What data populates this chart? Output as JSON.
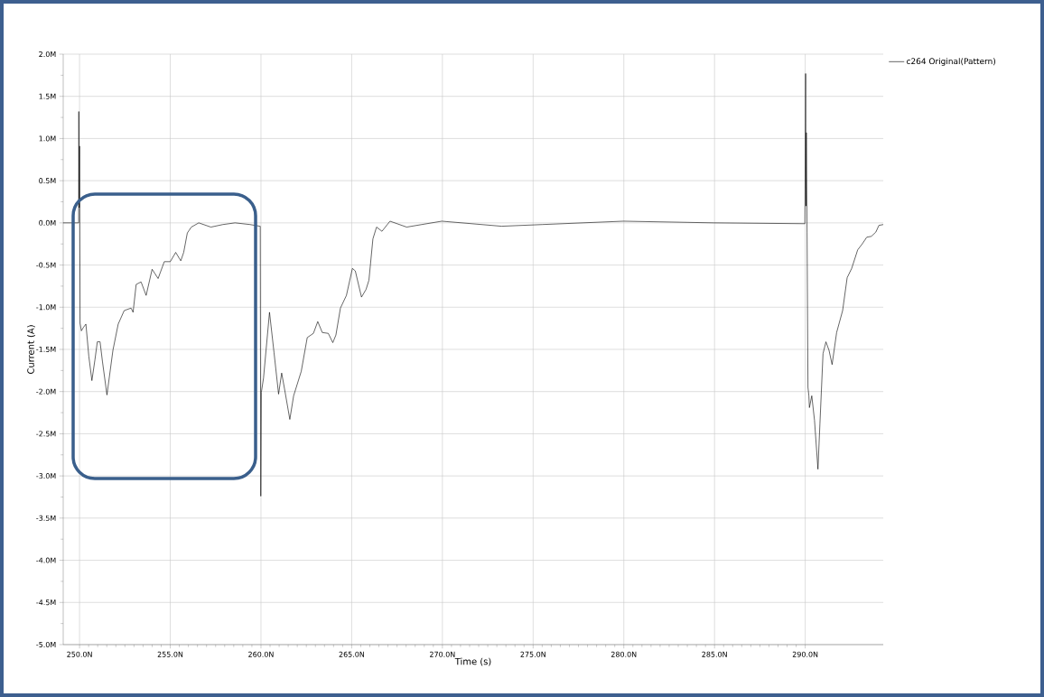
{
  "chart_data": {
    "type": "line",
    "xlabel": "Time (s)",
    "ylabel": "Current (A)",
    "xlim": [
      249.1,
      294.3
    ],
    "ylim": [
      -5.0,
      2.0
    ],
    "xticks": [
      {
        "value": 250,
        "label": "250.0N"
      },
      {
        "value": 255,
        "label": "255.0N"
      },
      {
        "value": 260,
        "label": "260.0N"
      },
      {
        "value": 265,
        "label": "265.0N"
      },
      {
        "value": 270,
        "label": "270.0N"
      },
      {
        "value": 275,
        "label": "275.0N"
      },
      {
        "value": 280,
        "label": "280.0N"
      },
      {
        "value": 285,
        "label": "285.0N"
      },
      {
        "value": 290,
        "label": "290.0N"
      }
    ],
    "yticks": [
      {
        "value": -5.0,
        "label": "-5.0M"
      },
      {
        "value": -4.5,
        "label": "-4.5M"
      },
      {
        "value": -4.0,
        "label": "-4.0M"
      },
      {
        "value": -3.5,
        "label": "-3.5M"
      },
      {
        "value": -3.0,
        "label": "-3.0M"
      },
      {
        "value": -2.5,
        "label": "-2.5M"
      },
      {
        "value": -2.0,
        "label": "-2.0M"
      },
      {
        "value": -1.5,
        "label": "-1.5M"
      },
      {
        "value": -1.0,
        "label": "-1.0M"
      },
      {
        "value": -0.5,
        "label": "-0.5M"
      },
      {
        "value": 0.0,
        "label": "0.0M"
      },
      {
        "value": 0.5,
        "label": "0.5M"
      },
      {
        "value": 1.0,
        "label": "1.0M"
      },
      {
        "value": 1.5,
        "label": "1.5M"
      },
      {
        "value": 2.0,
        "label": "2.0M"
      }
    ],
    "grid": true,
    "legend": "top right",
    "marker": "none",
    "line_style": "solid",
    "series": [
      {
        "name": "c264 Original(Pattern)",
        "color": "#000000",
        "x": [
          249.1,
          249.95,
          249.96,
          249.98,
          250.0,
          250.03,
          250.1,
          250.21,
          250.35,
          250.51,
          250.68,
          250.85,
          250.98,
          251.13,
          251.26,
          251.51,
          251.84,
          252.13,
          252.46,
          252.84,
          252.95,
          253.12,
          253.39,
          253.67,
          254.0,
          254.33,
          254.67,
          255.0,
          255.3,
          255.58,
          255.74,
          255.94,
          256.16,
          256.57,
          257.24,
          257.9,
          258.57,
          259.4,
          259.94,
          259.96,
          259.99,
          260.02,
          260.14,
          260.47,
          260.72,
          260.97,
          261.14,
          261.3,
          261.59,
          261.8,
          262.22,
          262.55,
          262.89,
          263.13,
          263.38,
          263.71,
          263.96,
          264.13,
          264.38,
          264.71,
          265.04,
          265.2,
          265.54,
          265.79,
          265.95,
          266.17,
          266.37,
          266.67,
          267.11,
          268.03,
          268.86,
          269.97,
          273.26,
          275.5,
          279.98,
          284.96,
          289.98,
          290.02,
          290.04,
          290.06,
          290.1,
          290.15,
          290.2,
          290.23,
          290.36,
          290.51,
          290.7,
          290.81,
          290.98,
          291.14,
          291.31,
          291.48,
          291.73,
          292.06,
          292.31,
          292.56,
          292.89,
          293.14,
          293.39,
          293.64,
          293.89,
          294.06,
          294.3
        ],
        "values": [
          0,
          0,
          1.32,
          0.18,
          0.91,
          -1.19,
          -1.28,
          -1.24,
          -1.2,
          -1.58,
          -1.87,
          -1.62,
          -1.41,
          -1.41,
          -1.64,
          -2.04,
          -1.51,
          -1.2,
          -1.04,
          -1.01,
          -1.06,
          -0.73,
          -0.7,
          -0.86,
          -0.55,
          -0.66,
          -0.46,
          -0.46,
          -0.35,
          -0.45,
          -0.35,
          -0.12,
          -0.05,
          0,
          -0.05,
          -0.02,
          0,
          -0.02,
          -0.04,
          -0.04,
          -3.24,
          -2.01,
          -1.84,
          -1.06,
          -1.54,
          -2.03,
          -1.78,
          -1.97,
          -2.33,
          -2.05,
          -1.76,
          -1.36,
          -1.31,
          -1.17,
          -1.3,
          -1.31,
          -1.42,
          -1.33,
          -1.01,
          -0.86,
          -0.54,
          -0.57,
          -0.88,
          -0.79,
          -0.68,
          -0.19,
          -0.05,
          -0.1,
          0.02,
          -0.05,
          -0.02,
          0.02,
          -0.04,
          -0.02,
          0.02,
          0,
          -0.01,
          1.77,
          0.2,
          1.07,
          -0.11,
          -1.95,
          -2.05,
          -2.19,
          -2.05,
          -2.34,
          -2.92,
          -2.38,
          -1.55,
          -1.41,
          -1.51,
          -1.68,
          -1.3,
          -1.04,
          -0.65,
          -0.54,
          -0.32,
          -0.25,
          -0.17,
          -0.16,
          -0.11,
          -0.03,
          -0.02
        ]
      }
    ]
  }
}
